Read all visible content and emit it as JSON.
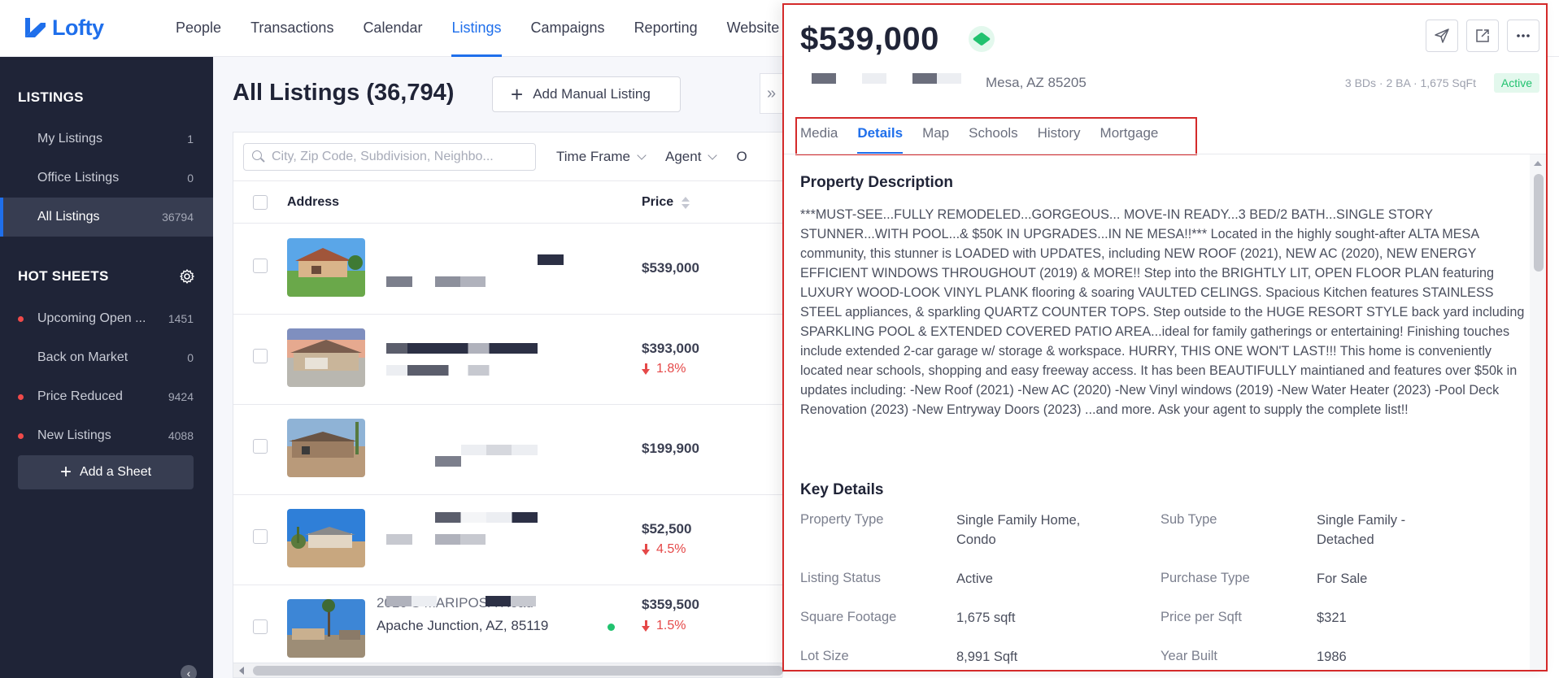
{
  "brand": {
    "name": "Lofty",
    "color": "#1f6feb"
  },
  "topnav": {
    "items": [
      "People",
      "Transactions",
      "Calendar",
      "Listings",
      "Campaigns",
      "Reporting",
      "Website"
    ],
    "active": "Listings"
  },
  "sidebar": {
    "listings_heading": "LISTINGS",
    "listings": [
      {
        "label": "My Listings",
        "count": "1"
      },
      {
        "label": "Office Listings",
        "count": "0"
      },
      {
        "label": "All Listings",
        "count": "36794",
        "active": true
      }
    ],
    "hot_sheets_heading": "HOT SHEETS",
    "hot_sheets": [
      {
        "label": "Upcoming Open ...",
        "count": "1451",
        "dot": true
      },
      {
        "label": "Back on Market",
        "count": "0",
        "dot": false
      },
      {
        "label": "Price Reduced",
        "count": "9424",
        "dot": true
      },
      {
        "label": "New Listings",
        "count": "4088",
        "dot": true
      }
    ],
    "add_sheet_label": "Add a Sheet"
  },
  "main": {
    "title": "All Listings (36,794)",
    "add_manual_label": "Add Manual Listing",
    "search_placeholder": "City, Zip Code, Subdivision, Neighbo...",
    "filters": [
      "Time Frame",
      "Agent",
      "O"
    ],
    "columns": {
      "address": "Address",
      "price": "Price"
    },
    "rows": [
      {
        "price": "$539,000",
        "change": ""
      },
      {
        "price": "$393,000",
        "change": "1.8%"
      },
      {
        "price": "$199,900",
        "change": ""
      },
      {
        "price": "$52,500",
        "change": "4.5%"
      },
      {
        "price": "$359,500",
        "change": "1.5%",
        "address_line1": "2010 S MARIPOSA Road",
        "address_line2": "Apache Junction, AZ, 85119"
      }
    ]
  },
  "detail": {
    "price": "$539,000",
    "address": "Mesa, AZ 85205",
    "meta": "3 BDs · 2 BA · 1,675 SqFt",
    "status": "Active",
    "tabs": [
      "Media",
      "Details",
      "Map",
      "Schools",
      "History",
      "Mortgage"
    ],
    "active_tab": "Details",
    "description_heading": "Property Description",
    "description": "***MUST-SEE...FULLY REMODELED...GORGEOUS... MOVE-IN READY...3 BED/2 BATH...SINGLE STORY STUNNER...WITH POOL...& $50K IN UPGRADES...IN NE MESA!!*** Located in the highly sought-after ALTA MESA community, this stunner is LOADED with UPDATES, including NEW ROOF (2021), NEW AC (2020), NEW ENERGY EFFICIENT WINDOWS THROUGHOUT (2019) & MORE!! Step into the BRIGHTLY LIT, OPEN FLOOR PLAN featuring LUXURY WOOD-LOOK VINYL PLANK flooring & soaring VAULTED CELINGS. Spacious Kitchen features STAINLESS STEEL appliances, & sparkling QUARTZ COUNTER TOPS. Step outside to the HUGE RESORT STYLE back yard including SPARKLING POOL & EXTENDED COVERED PATIO AREA...ideal for family gatherings or entertaining! Finishing touches include extended 2-car garage w/ storage & workspace. HURRY, THIS ONE WON'T LAST!!! This home is conveniently located near schools, shopping and easy freeway access. It has been BEAUTIFULLY maintianed and features over $50k in updates including: -New Roof (2021) -New AC (2020) -New Vinyl windows (2019) -New Water Heater (2023) -Pool Deck Renovation (2023) -New Entryway Doors (2023) ...and more. Ask your agent to supply the complete list!!",
    "key_details_heading": "Key Details",
    "key_details": [
      {
        "label": "Property Type",
        "value": "Single Family Home, Condo",
        "label2": "Sub Type",
        "value2": "Single Family - Detached"
      },
      {
        "label": "Listing Status",
        "value": "Active",
        "label2": "Purchase Type",
        "value2": "For Sale"
      },
      {
        "label": "Square Footage",
        "value": "1,675 sqft",
        "label2": "Price per Sqft",
        "value2": "$321"
      },
      {
        "label": "Lot Size",
        "value": "8,991 Sqft",
        "label2": "Year Built",
        "value2": "1986"
      }
    ]
  }
}
